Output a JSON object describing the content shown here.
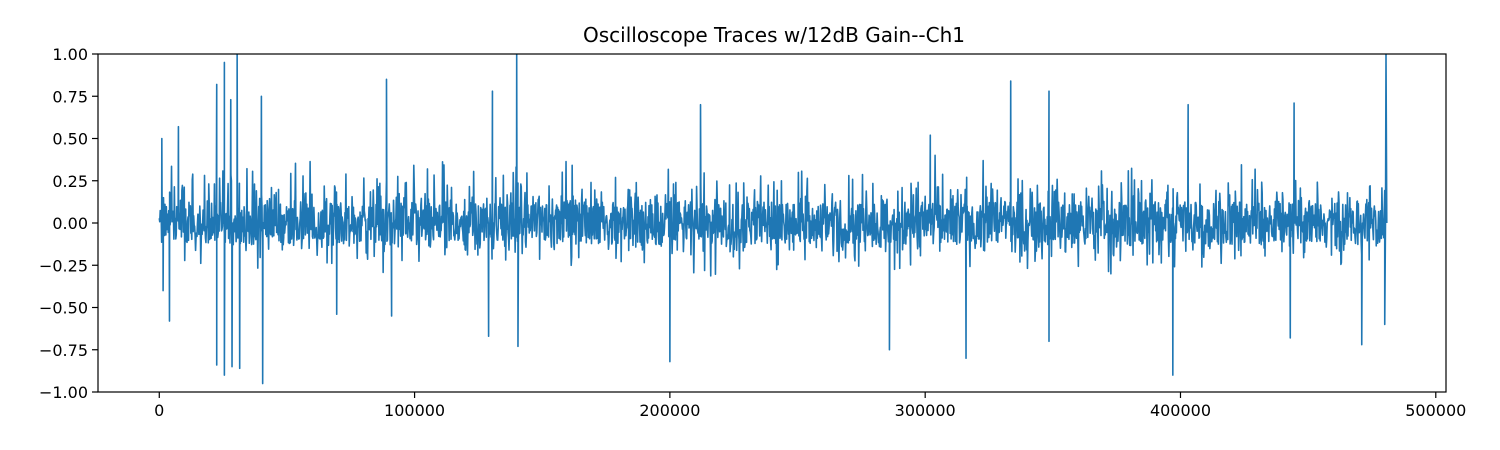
{
  "chart_data": {
    "type": "line",
    "title": "Oscilloscope Traces w/12dB Gain--Ch1",
    "xlabel": "",
    "ylabel": "",
    "xlim": [
      -24000,
      504000
    ],
    "ylim": [
      -1.0,
      1.0
    ],
    "x_ticks": [
      0,
      100000,
      200000,
      300000,
      400000,
      500000
    ],
    "x_tick_labels": [
      "0",
      "100000",
      "200000",
      "300000",
      "400000",
      "500000"
    ],
    "y_ticks": [
      1.0,
      0.75,
      0.5,
      0.25,
      0.0,
      -0.25,
      -0.5,
      -0.75,
      -1.0
    ],
    "y_tick_labels": [
      "1.00",
      "0.75",
      "0.50",
      "0.25",
      "0.00",
      "−0.25",
      "−0.50",
      "−0.75",
      "−1.00"
    ],
    "grid": false,
    "legend": "none",
    "series": [
      {
        "color": "#1f77b4",
        "sample_count": 480000,
        "x_range": [
          0,
          480000
        ],
        "typical_amplitude": [
          -0.35,
          0.45
        ],
        "peaks": [
          {
            "x": 1000,
            "y": 0.5
          },
          {
            "x": 1500,
            "y": -0.4
          },
          {
            "x": 4000,
            "y": -0.58
          },
          {
            "x": 7500,
            "y": 0.57
          },
          {
            "x": 22500,
            "y": 0.82
          },
          {
            "x": 22500,
            "y": -0.84
          },
          {
            "x": 25500,
            "y": 0.95
          },
          {
            "x": 25500,
            "y": -0.9
          },
          {
            "x": 28000,
            "y": 0.73
          },
          {
            "x": 28500,
            "y": -0.85
          },
          {
            "x": 30500,
            "y": 1.0
          },
          {
            "x": 31500,
            "y": -0.86
          },
          {
            "x": 40000,
            "y": 0.75
          },
          {
            "x": 40500,
            "y": -0.95
          },
          {
            "x": 69500,
            "y": -0.54
          },
          {
            "x": 89000,
            "y": 0.85
          },
          {
            "x": 91000,
            "y": -0.55
          },
          {
            "x": 129000,
            "y": -0.67
          },
          {
            "x": 130500,
            "y": 0.78
          },
          {
            "x": 140000,
            "y": 1.0
          },
          {
            "x": 140500,
            "y": -0.73
          },
          {
            "x": 200000,
            "y": -0.82
          },
          {
            "x": 212000,
            "y": 0.7
          },
          {
            "x": 286000,
            "y": -0.75
          },
          {
            "x": 302000,
            "y": 0.52
          },
          {
            "x": 316000,
            "y": -0.8
          },
          {
            "x": 333500,
            "y": 0.84
          },
          {
            "x": 348500,
            "y": 0.78
          },
          {
            "x": 348500,
            "y": -0.7
          },
          {
            "x": 397000,
            "y": -0.9
          },
          {
            "x": 403000,
            "y": 0.7
          },
          {
            "x": 443000,
            "y": -0.68
          },
          {
            "x": 444500,
            "y": 0.71
          },
          {
            "x": 471000,
            "y": -0.72
          },
          {
            "x": 480500,
            "y": 1.0
          },
          {
            "x": 480000,
            "y": -0.6
          }
        ]
      }
    ]
  }
}
